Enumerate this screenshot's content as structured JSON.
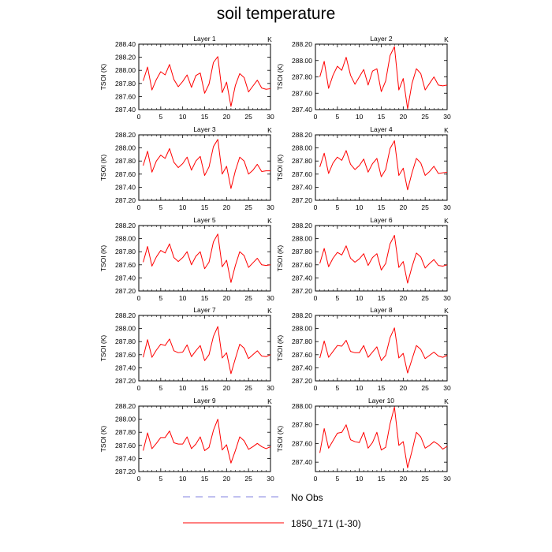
{
  "page": {
    "title": "soil temperature"
  },
  "legend": {
    "entries": [
      {
        "label": "No Obs",
        "color": "#8080e0",
        "dashed": true
      },
      {
        "label": "1850_171 (1-30)",
        "color": "#ff0000",
        "dashed": false
      }
    ]
  },
  "chart_data": [
    {
      "type": "line",
      "title": "Layer 1",
      "xlabel": "",
      "ylabel": "TSOI  (K)",
      "unit_label": "K",
      "xlim": [
        0,
        30
      ],
      "ylim": [
        287.4,
        288.4
      ],
      "xticks": [
        "0",
        "5",
        "10",
        "15",
        "20",
        "25",
        "30"
      ],
      "yticks": [
        "287.40",
        "287.60",
        "287.80",
        "288.00",
        "288.20",
        "288.40"
      ],
      "x": [
        1,
        2,
        3,
        4,
        5,
        6,
        7,
        8,
        9,
        10,
        11,
        12,
        13,
        14,
        15,
        16,
        17,
        18,
        19,
        20,
        21,
        22,
        23,
        24,
        25,
        26,
        27,
        28,
        29,
        30
      ],
      "series": [
        {
          "name": "1850_171 (1-30)",
          "values": [
            287.84,
            288.05,
            287.7,
            287.86,
            287.98,
            287.93,
            288.09,
            287.86,
            287.75,
            287.83,
            287.93,
            287.74,
            287.92,
            287.96,
            287.65,
            287.79,
            288.12,
            288.21,
            287.66,
            287.82,
            287.45,
            287.77,
            287.95,
            287.89,
            287.67,
            287.76,
            287.85,
            287.73,
            287.71,
            287.72
          ]
        }
      ]
    },
    {
      "type": "line",
      "title": "Layer 2",
      "xlabel": "",
      "ylabel": "TSOI  (K)",
      "unit_label": "K",
      "xlim": [
        0,
        30
      ],
      "ylim": [
        287.4,
        288.2
      ],
      "xticks": [
        "0",
        "5",
        "10",
        "15",
        "20",
        "25",
        "30"
      ],
      "yticks": [
        "287.40",
        "287.60",
        "287.80",
        "288.00",
        "288.20"
      ],
      "x": [
        1,
        2,
        3,
        4,
        5,
        6,
        7,
        8,
        9,
        10,
        11,
        12,
        13,
        14,
        15,
        16,
        17,
        18,
        19,
        20,
        21,
        22,
        23,
        24,
        25,
        26,
        27,
        28,
        29,
        30
      ],
      "series": [
        {
          "name": "1850_171 (1-30)",
          "values": [
            287.8,
            287.99,
            287.66,
            287.82,
            287.93,
            287.88,
            288.04,
            287.82,
            287.71,
            287.8,
            287.89,
            287.7,
            287.87,
            287.9,
            287.62,
            287.75,
            288.06,
            288.17,
            287.64,
            287.78,
            287.41,
            287.72,
            287.9,
            287.84,
            287.64,
            287.72,
            287.8,
            287.7,
            287.69,
            287.7
          ]
        }
      ]
    },
    {
      "type": "line",
      "title": "Layer 3",
      "xlabel": "",
      "ylabel": "TSOI  (K)",
      "unit_label": "K",
      "xlim": [
        0,
        30
      ],
      "ylim": [
        287.2,
        288.2
      ],
      "xticks": [
        "0",
        "5",
        "10",
        "15",
        "20",
        "25",
        "30"
      ],
      "yticks": [
        "287.20",
        "287.40",
        "287.60",
        "287.80",
        "288.00",
        "288.20"
      ],
      "x": [
        1,
        2,
        3,
        4,
        5,
        6,
        7,
        8,
        9,
        10,
        11,
        12,
        13,
        14,
        15,
        16,
        17,
        18,
        19,
        20,
        21,
        22,
        23,
        24,
        25,
        26,
        27,
        28,
        29,
        30
      ],
      "series": [
        {
          "name": "1850_171 (1-30)",
          "values": [
            287.73,
            287.95,
            287.63,
            287.8,
            287.89,
            287.84,
            287.99,
            287.78,
            287.7,
            287.76,
            287.86,
            287.66,
            287.8,
            287.87,
            287.58,
            287.71,
            288.02,
            288.13,
            287.6,
            287.72,
            287.38,
            287.65,
            287.86,
            287.8,
            287.6,
            287.66,
            287.75,
            287.64,
            287.65,
            287.65
          ]
        }
      ]
    },
    {
      "type": "line",
      "title": "Layer 4",
      "xlabel": "",
      "ylabel": "TSOI  (K)",
      "unit_label": "K",
      "xlim": [
        0,
        30
      ],
      "ylim": [
        287.2,
        288.2
      ],
      "xticks": [
        "0",
        "5",
        "10",
        "15",
        "20",
        "25",
        "30"
      ],
      "yticks": [
        "287.20",
        "287.40",
        "287.60",
        "287.80",
        "288.00",
        "288.20"
      ],
      "x": [
        1,
        2,
        3,
        4,
        5,
        6,
        7,
        8,
        9,
        10,
        11,
        12,
        13,
        14,
        15,
        16,
        17,
        18,
        19,
        20,
        21,
        22,
        23,
        24,
        25,
        26,
        27,
        28,
        29,
        30
      ],
      "series": [
        {
          "name": "1850_171 (1-30)",
          "values": [
            287.71,
            287.92,
            287.61,
            287.77,
            287.86,
            287.81,
            287.96,
            287.75,
            287.67,
            287.73,
            287.83,
            287.63,
            287.76,
            287.84,
            287.56,
            287.67,
            287.99,
            288.11,
            287.58,
            287.69,
            287.36,
            287.62,
            287.84,
            287.77,
            287.58,
            287.64,
            287.72,
            287.61,
            287.62,
            287.63
          ]
        }
      ]
    },
    {
      "type": "line",
      "title": "Layer 5",
      "xlabel": "",
      "ylabel": "TSOI  (K)",
      "unit_label": "K",
      "xlim": [
        0,
        30
      ],
      "ylim": [
        287.2,
        288.2
      ],
      "xticks": [
        "0",
        "5",
        "10",
        "15",
        "20",
        "25",
        "30"
      ],
      "yticks": [
        "287.20",
        "287.40",
        "287.60",
        "287.80",
        "288.00",
        "288.20"
      ],
      "x": [
        1,
        2,
        3,
        4,
        5,
        6,
        7,
        8,
        9,
        10,
        11,
        12,
        13,
        14,
        15,
        16,
        17,
        18,
        19,
        20,
        21,
        22,
        23,
        24,
        25,
        26,
        27,
        28,
        29,
        30
      ],
      "series": [
        {
          "name": "1850_171 (1-30)",
          "values": [
            287.64,
            287.88,
            287.58,
            287.72,
            287.82,
            287.78,
            287.92,
            287.71,
            287.65,
            287.71,
            287.8,
            287.6,
            287.73,
            287.8,
            287.54,
            287.64,
            287.95,
            288.07,
            287.57,
            287.67,
            287.33,
            287.59,
            287.8,
            287.74,
            287.56,
            287.63,
            287.7,
            287.6,
            287.59,
            287.6
          ]
        }
      ]
    },
    {
      "type": "line",
      "title": "Layer 6",
      "xlabel": "",
      "ylabel": "TSOI  (K)",
      "unit_label": "K",
      "xlim": [
        0,
        30
      ],
      "ylim": [
        287.2,
        288.2
      ],
      "xticks": [
        "0",
        "5",
        "10",
        "15",
        "20",
        "25",
        "30"
      ],
      "yticks": [
        "287.20",
        "287.40",
        "287.60",
        "287.80",
        "288.00",
        "288.20"
      ],
      "x": [
        1,
        2,
        3,
        4,
        5,
        6,
        7,
        8,
        9,
        10,
        11,
        12,
        13,
        14,
        15,
        16,
        17,
        18,
        19,
        20,
        21,
        22,
        23,
        24,
        25,
        26,
        27,
        28,
        29,
        30
      ],
      "series": [
        {
          "name": "1850_171 (1-30)",
          "values": [
            287.62,
            287.85,
            287.57,
            287.7,
            287.79,
            287.75,
            287.89,
            287.7,
            287.64,
            287.69,
            287.77,
            287.59,
            287.71,
            287.77,
            287.52,
            287.62,
            287.92,
            288.05,
            287.56,
            287.65,
            287.32,
            287.57,
            287.78,
            287.72,
            287.55,
            287.62,
            287.68,
            287.59,
            287.58,
            287.6
          ]
        }
      ]
    },
    {
      "type": "line",
      "title": "Layer 7",
      "xlabel": "",
      "ylabel": "TSOI  (K)",
      "unit_label": "K",
      "xlim": [
        0,
        30
      ],
      "ylim": [
        287.2,
        288.2
      ],
      "xticks": [
        "0",
        "5",
        "10",
        "15",
        "20",
        "25",
        "30"
      ],
      "yticks": [
        "287.20",
        "287.40",
        "287.60",
        "287.80",
        "288.00",
        "288.20"
      ],
      "x": [
        1,
        2,
        3,
        4,
        5,
        6,
        7,
        8,
        9,
        10,
        11,
        12,
        13,
        14,
        15,
        16,
        17,
        18,
        19,
        20,
        21,
        22,
        23,
        24,
        25,
        26,
        27,
        28,
        29,
        30
      ],
      "series": [
        {
          "name": "1850_171 (1-30)",
          "values": [
            287.56,
            287.83,
            287.56,
            287.67,
            287.76,
            287.74,
            287.84,
            287.66,
            287.63,
            287.64,
            287.75,
            287.57,
            287.66,
            287.74,
            287.51,
            287.6,
            287.88,
            288.03,
            287.55,
            287.63,
            287.31,
            287.54,
            287.76,
            287.7,
            287.54,
            287.6,
            287.66,
            287.58,
            287.57,
            287.6
          ]
        }
      ]
    },
    {
      "type": "line",
      "title": "Layer 8",
      "xlabel": "",
      "ylabel": "TSOI  (K)",
      "unit_label": "K",
      "xlim": [
        0,
        30
      ],
      "ylim": [
        287.2,
        288.2
      ],
      "xticks": [
        "0",
        "5",
        "10",
        "15",
        "20",
        "25",
        "30"
      ],
      "yticks": [
        "287.20",
        "287.40",
        "287.60",
        "287.80",
        "288.00",
        "288.20"
      ],
      "x": [
        1,
        2,
        3,
        4,
        5,
        6,
        7,
        8,
        9,
        10,
        11,
        12,
        13,
        14,
        15,
        16,
        17,
        18,
        19,
        20,
        21,
        22,
        23,
        24,
        25,
        26,
        27,
        28,
        29,
        30
      ],
      "series": [
        {
          "name": "1850_171 (1-30)",
          "values": [
            287.55,
            287.81,
            287.56,
            287.65,
            287.74,
            287.73,
            287.82,
            287.65,
            287.63,
            287.63,
            287.74,
            287.56,
            287.64,
            287.72,
            287.51,
            287.59,
            287.86,
            288.01,
            287.55,
            287.62,
            287.32,
            287.53,
            287.74,
            287.68,
            287.54,
            287.59,
            287.64,
            287.58,
            287.56,
            287.59
          ]
        }
      ]
    },
    {
      "type": "line",
      "title": "Layer 9",
      "xlabel": "",
      "ylabel": "TSOI  (K)",
      "unit_label": "K",
      "xlim": [
        0,
        30
      ],
      "ylim": [
        287.2,
        288.2
      ],
      "xticks": [
        "0",
        "5",
        "10",
        "15",
        "20",
        "25",
        "30"
      ],
      "yticks": [
        "287.20",
        "287.40",
        "287.60",
        "287.80",
        "288.00",
        "288.20"
      ],
      "x": [
        1,
        2,
        3,
        4,
        5,
        6,
        7,
        8,
        9,
        10,
        11,
        12,
        13,
        14,
        15,
        16,
        17,
        18,
        19,
        20,
        21,
        22,
        23,
        24,
        25,
        26,
        27,
        28,
        29,
        30
      ],
      "series": [
        {
          "name": "1850_171 (1-30)",
          "values": [
            287.52,
            287.79,
            287.55,
            287.63,
            287.72,
            287.72,
            287.82,
            287.64,
            287.62,
            287.62,
            287.73,
            287.55,
            287.62,
            287.73,
            287.52,
            287.57,
            287.83,
            288.0,
            287.53,
            287.61,
            287.33,
            287.52,
            287.73,
            287.67,
            287.54,
            287.58,
            287.63,
            287.58,
            287.55,
            287.58
          ]
        }
      ]
    },
    {
      "type": "line",
      "title": "Layer 10",
      "xlabel": "",
      "ylabel": "TSOI  (K)",
      "unit_label": "K",
      "xlim": [
        0,
        30
      ],
      "ylim": [
        287.3,
        288.0
      ],
      "xticks": [
        "0",
        "5",
        "10",
        "15",
        "20",
        "25",
        "30"
      ],
      "yticks": [
        "287.40",
        "287.60",
        "287.80",
        "288.00"
      ],
      "x": [
        1,
        2,
        3,
        4,
        5,
        6,
        7,
        8,
        9,
        10,
        11,
        12,
        13,
        14,
        15,
        16,
        17,
        18,
        19,
        20,
        21,
        22,
        23,
        24,
        25,
        26,
        27,
        28,
        29,
        30
      ],
      "series": [
        {
          "name": "1850_171 (1-30)",
          "values": [
            287.5,
            287.76,
            287.55,
            287.63,
            287.71,
            287.72,
            287.8,
            287.64,
            287.62,
            287.61,
            287.72,
            287.55,
            287.61,
            287.72,
            287.53,
            287.56,
            287.81,
            287.99,
            287.58,
            287.62,
            287.34,
            287.52,
            287.72,
            287.67,
            287.55,
            287.58,
            287.62,
            287.59,
            287.54,
            287.57
          ]
        }
      ]
    }
  ]
}
